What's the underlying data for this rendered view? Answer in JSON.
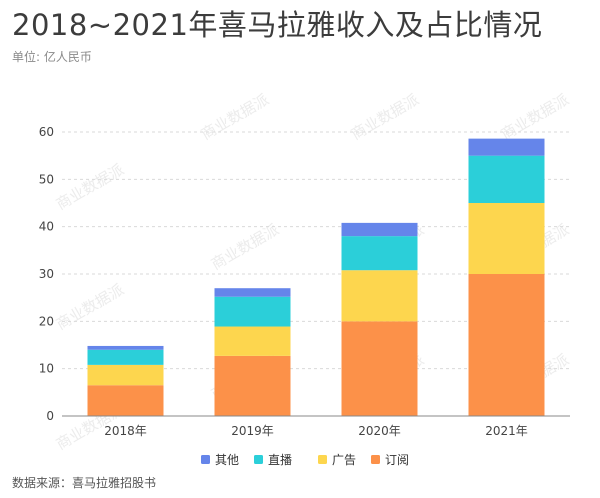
{
  "header": {
    "title": "2018~2021年喜马拉雅收入及占比情况",
    "unit": "单位: 亿人民币"
  },
  "footer": {
    "source": "数据来源：喜马拉雅招股书"
  },
  "watermark": {
    "text": "商业数据派"
  },
  "colors": {
    "订阅": "#fc9149",
    "广告": "#fdd64e",
    "直播": "#2bcfd9",
    "其他": "#6585ea",
    "grid": "#d9d9d9",
    "axis": "#444444"
  },
  "chart_data": {
    "type": "bar",
    "stacked": true,
    "categories": [
      "2018年",
      "2019年",
      "2020年",
      "2021年"
    ],
    "series": [
      {
        "name": "订阅",
        "values": [
          6.5,
          12.7,
          20.0,
          30.0
        ]
      },
      {
        "name": "广告",
        "values": [
          4.3,
          6.2,
          10.8,
          15.0
        ]
      },
      {
        "name": "直播",
        "values": [
          3.2,
          6.3,
          7.2,
          10.0
        ]
      },
      {
        "name": "其他",
        "values": [
          0.8,
          1.8,
          2.8,
          3.6
        ]
      }
    ],
    "ylim": [
      0,
      60
    ],
    "yticks": [
      0,
      10,
      20,
      30,
      40,
      50,
      60
    ],
    "legend_order": [
      "其他",
      "直播",
      "广告",
      "订阅"
    ],
    "legend_position": "bottom-center",
    "grid": true
  }
}
